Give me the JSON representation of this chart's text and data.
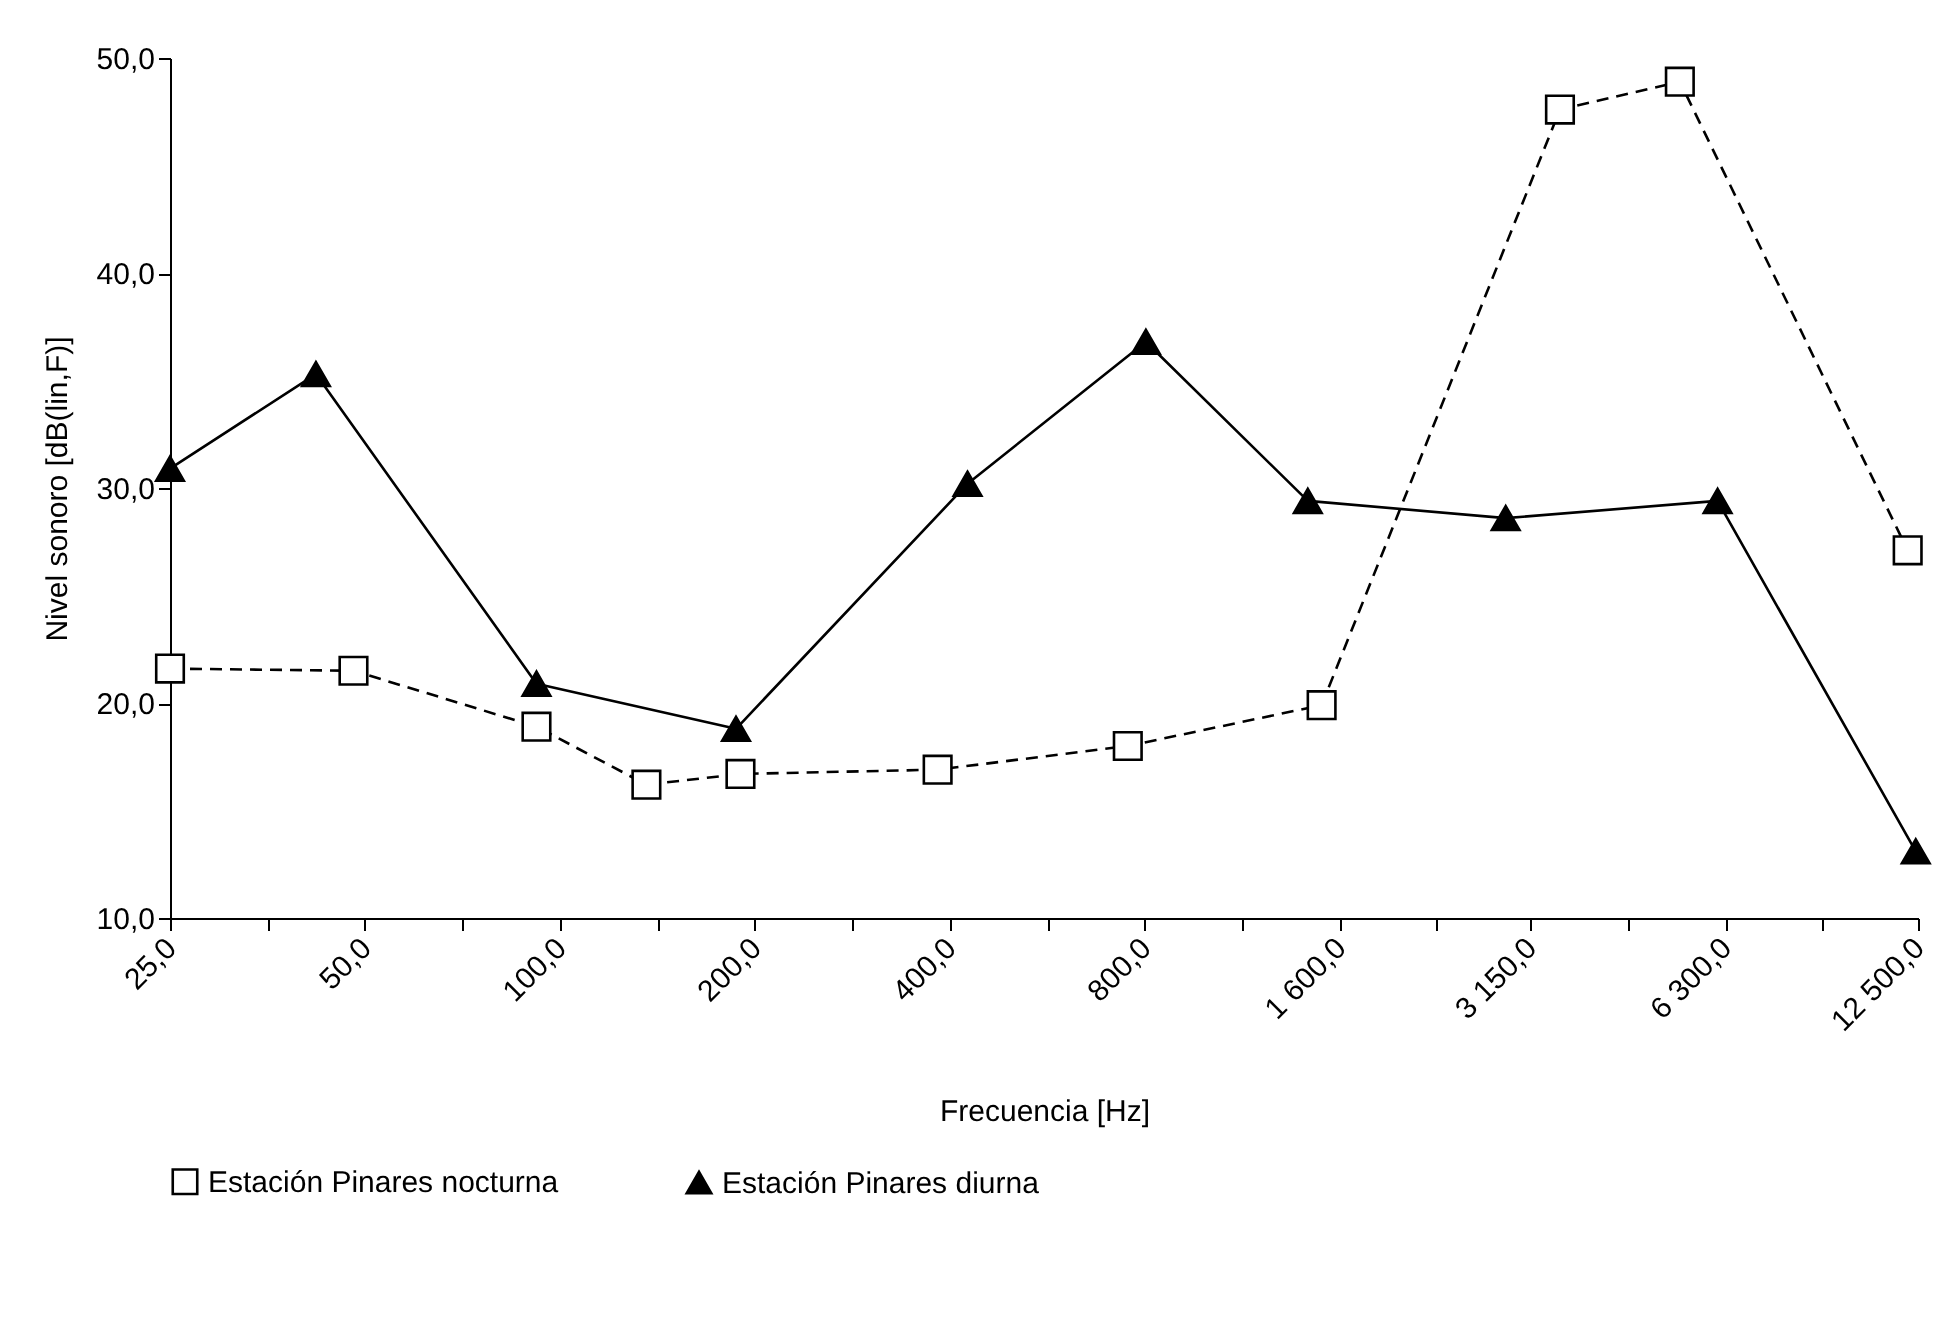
{
  "chart_data": {
    "type": "line",
    "xlabel": "Frecuencia  [Hz]",
    "ylabel": "Nivel sonoro [dB(lin,F)]",
    "log": "x",
    "xlim": [
      25,
      12500
    ],
    "ylim": [
      10,
      50
    ],
    "xticks": [
      {
        "value": 25,
        "label": "25,0"
      },
      {
        "value": 35.36,
        "label": null
      },
      {
        "value": 50,
        "label": "50,0"
      },
      {
        "value": 70.71,
        "label": null
      },
      {
        "value": 100,
        "label": "100,0"
      },
      {
        "value": 141.4,
        "label": null
      },
      {
        "value": 200,
        "label": "200,0"
      },
      {
        "value": 282.8,
        "label": null
      },
      {
        "value": 400,
        "label": "400,0"
      },
      {
        "value": 565.7,
        "label": null
      },
      {
        "value": 800,
        "label": "800,0"
      },
      {
        "value": 1131,
        "label": null
      },
      {
        "value": 1600,
        "label": "1 600,0"
      },
      {
        "value": 2245,
        "label": null
      },
      {
        "value": 3150,
        "label": "3 150,0"
      },
      {
        "value": 4455,
        "label": null
      },
      {
        "value": 6300,
        "label": "6 300,0"
      },
      {
        "value": 8874,
        "label": null
      },
      {
        "value": 12500,
        "label": "12 500,0"
      }
    ],
    "yticks": [
      {
        "value": 10,
        "label": "10,0"
      },
      {
        "value": 20,
        "label": "20,0"
      },
      {
        "value": 30,
        "label": "30,0"
      },
      {
        "value": 40,
        "label": "40,0"
      },
      {
        "value": 50,
        "label": "50,0"
      }
    ],
    "grid": false,
    "legend": "bottom",
    "series": [
      {
        "name": "Estación Pinares nocturna",
        "color": "#000000",
        "marker": "square",
        "line_style": "dashed",
        "x": [
          25,
          48,
          92,
          136,
          190,
          383,
          753,
          1500,
          3500,
          5360,
          12050
        ],
        "values": [
          21.6,
          21.5,
          18.9,
          16.2,
          16.7,
          16.9,
          18.0,
          19.9,
          47.6,
          48.9,
          27.1
        ]
      },
      {
        "name": "Estación Pinares diurna",
        "color": "#000000",
        "marker": "triangle",
        "line_style": "solid",
        "x": [
          25,
          42,
          92,
          187,
          426,
          803,
          1428,
          2886,
          6130,
          12400
        ],
        "values": [
          30.9,
          35.3,
          20.9,
          18.8,
          30.2,
          36.8,
          29.4,
          28.6,
          29.4,
          13.1
        ]
      }
    ]
  }
}
